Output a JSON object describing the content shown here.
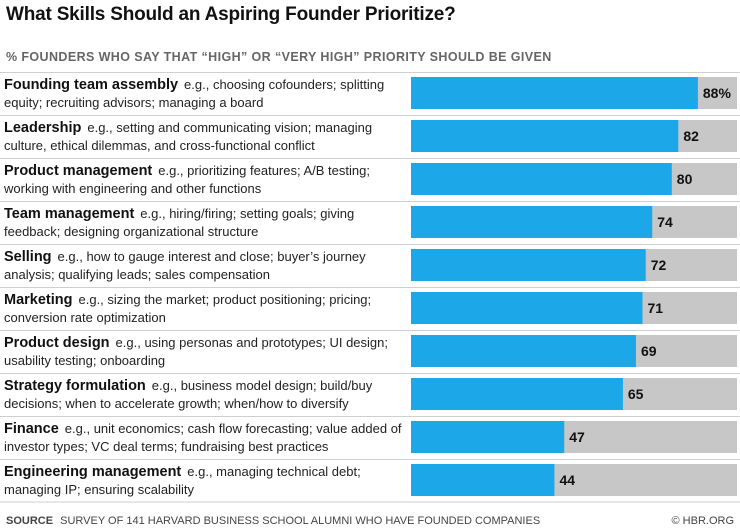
{
  "title": "What Skills Should an Aspiring Founder Prioritize?",
  "subtitle": "% FOUNDERS WHO SAY THAT “HIGH” OR “VERY HIGH” PRIORITY SHOULD BE GIVEN",
  "footer": {
    "source_label": "SOURCE",
    "source_text": "SURVEY OF 141 HARVARD BUSINESS SCHOOL ALUMNI WHO HAVE FOUNDED COMPANIES",
    "copyright": "© HBR.ORG"
  },
  "colors": {
    "bar": "#1ba7e8",
    "track": "#c7c7c7"
  },
  "chart_data": {
    "type": "bar",
    "orientation": "horizontal",
    "title": "What Skills Should an Aspiring Founder Prioritize?",
    "subtitle": "% FOUNDERS WHO SAY THAT “HIGH” OR “VERY HIGH” PRIORITY SHOULD BE GIVEN",
    "xlim": [
      0,
      100
    ],
    "categories": [
      "Founding team assembly",
      "Leadership",
      "Product management",
      "Team management",
      "Selling",
      "Marketing",
      "Product design",
      "Strategy formulation",
      "Finance",
      "Engineering management"
    ],
    "descriptions": [
      "e.g., choosing cofounders; splitting equity; recruiting advisors; managing a board",
      "e.g., setting and communicating vision; managing culture, ethical dilemmas, and cross-functional conflict",
      "e.g., prioritizing features; A/B testing; working with engineering and other functions",
      "e.g., hiring/firing; setting goals; giving feedback; designing organizational structure",
      "e.g., how to gauge interest and close; buyer’s journey analysis; qualifying leads; sales compensation",
      "e.g., sizing the market; product positioning; pricing; conversion rate optimization",
      "e.g., using personas and prototypes; UI design; usability testing; onboarding",
      "e.g., business model design; build/buy decisions; when to accelerate growth; when/how to diversify",
      "e.g., unit economics; cash flow forecasting; value added of investor types; VC deal terms; fundraising best practices",
      "e.g., managing technical debt; managing IP; ensuring scalability"
    ],
    "values": [
      88,
      82,
      80,
      74,
      72,
      71,
      69,
      65,
      47,
      44
    ],
    "value_labels": [
      "88%",
      "82",
      "80",
      "74",
      "72",
      "71",
      "69",
      "65",
      "47",
      "44"
    ],
    "grid": false,
    "legend": "none"
  }
}
